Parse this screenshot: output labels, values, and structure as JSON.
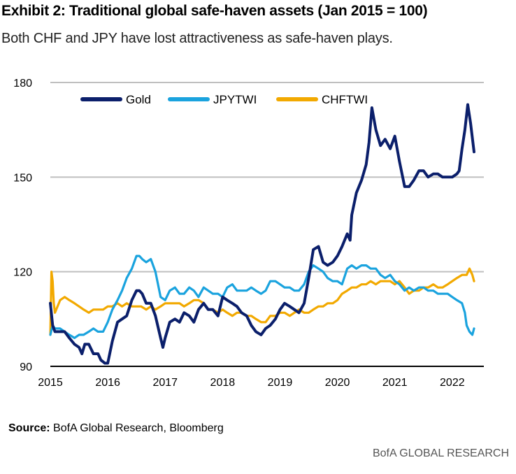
{
  "header": {
    "title": "Exhibit 2: Traditional global safe-haven assets (Jan 2015 = 100)",
    "subtitle": "Both CHF and JPY have lost attractiveness as safe-haven plays."
  },
  "footer": {
    "source_label": "Source:",
    "source_text": " BofA Global Research, Bloomberg",
    "brand": "BofA GLOBAL RESEARCH"
  },
  "colors": {
    "gold": "#0b1f6b",
    "jpy": "#1aa3de",
    "chf": "#f2a900",
    "grid": "#bfbfbf",
    "axis": "#000000"
  },
  "chart_data": {
    "type": "line",
    "title": "Traditional global safe-haven assets (Jan 2015 = 100)",
    "xlabel": "",
    "ylabel": "",
    "xlim": [
      2015.0,
      2022.55
    ],
    "ylim": [
      90,
      180
    ],
    "yticks": [
      90,
      120,
      150,
      180
    ],
    "xticks": [
      {
        "value": 2015,
        "label": "2015"
      },
      {
        "value": 2016,
        "label": "2016"
      },
      {
        "value": 2017,
        "label": "2017"
      },
      {
        "value": 2018,
        "label": "2018"
      },
      {
        "value": 2019,
        "label": "2019"
      },
      {
        "value": 2020,
        "label": "2020"
      },
      {
        "value": 2021,
        "label": "2021"
      },
      {
        "value": 2022,
        "label": "2022"
      }
    ],
    "legend": "top-left",
    "series": [
      {
        "name": "Gold",
        "x": [
          2015.0,
          2015.04,
          2015.08,
          2015.15,
          2015.25,
          2015.33,
          2015.42,
          2015.5,
          2015.55,
          2015.6,
          2015.67,
          2015.75,
          2015.83,
          2015.88,
          2015.95,
          2016.0,
          2016.08,
          2016.17,
          2016.25,
          2016.33,
          2016.42,
          2016.5,
          2016.55,
          2016.6,
          2016.67,
          2016.75,
          2016.83,
          2016.92,
          2016.96,
          2017.0,
          2017.08,
          2017.17,
          2017.25,
          2017.33,
          2017.42,
          2017.5,
          2017.58,
          2017.67,
          2017.75,
          2017.83,
          2017.92,
          2018.0,
          2018.08,
          2018.17,
          2018.25,
          2018.33,
          2018.42,
          2018.5,
          2018.58,
          2018.67,
          2018.75,
          2018.83,
          2018.92,
          2019.0,
          2019.08,
          2019.17,
          2019.25,
          2019.33,
          2019.42,
          2019.5,
          2019.58,
          2019.67,
          2019.75,
          2019.83,
          2019.92,
          2020.0,
          2020.08,
          2020.17,
          2020.22,
          2020.25,
          2020.33,
          2020.42,
          2020.5,
          2020.55,
          2020.6,
          2020.67,
          2020.75,
          2020.83,
          2020.92,
          2021.0,
          2021.08,
          2021.17,
          2021.25,
          2021.33,
          2021.42,
          2021.5,
          2021.58,
          2021.67,
          2021.75,
          2021.83,
          2021.92,
          2022.0,
          2022.08,
          2022.12,
          2022.17,
          2022.22,
          2022.27,
          2022.32,
          2022.38
        ],
        "values": [
          110,
          103,
          101,
          101,
          101,
          99,
          97,
          96,
          94,
          97,
          97,
          94,
          94,
          92,
          91,
          91,
          98,
          104,
          105,
          106,
          111,
          114,
          114,
          113,
          110,
          110,
          106,
          99,
          96,
          99,
          104,
          105,
          104,
          107,
          106,
          104,
          108,
          110,
          108,
          108,
          106,
          112,
          111,
          110,
          109,
          107,
          106,
          103,
          101,
          100,
          102,
          103,
          105,
          108,
          110,
          109,
          108,
          107,
          110,
          118,
          127,
          128,
          123,
          122,
          123,
          125,
          128,
          132,
          130,
          138,
          145,
          149,
          154,
          161,
          172,
          165,
          160,
          162,
          159,
          163,
          155,
          147,
          147,
          149,
          152,
          152,
          150,
          151,
          151,
          150,
          150,
          150,
          151,
          152,
          159,
          165,
          173,
          167,
          158
        ]
      },
      {
        "name": "JPYTWI",
        "x": [
          2015.0,
          2015.04,
          2015.08,
          2015.17,
          2015.25,
          2015.33,
          2015.42,
          2015.5,
          2015.58,
          2015.67,
          2015.75,
          2015.83,
          2015.92,
          2016.0,
          2016.08,
          2016.17,
          2016.25,
          2016.33,
          2016.42,
          2016.5,
          2016.55,
          2016.6,
          2016.67,
          2016.75,
          2016.83,
          2016.92,
          2017.0,
          2017.08,
          2017.17,
          2017.25,
          2017.33,
          2017.42,
          2017.5,
          2017.58,
          2017.67,
          2017.75,
          2017.83,
          2017.92,
          2018.0,
          2018.08,
          2018.17,
          2018.25,
          2018.33,
          2018.42,
          2018.5,
          2018.58,
          2018.67,
          2018.75,
          2018.83,
          2018.92,
          2019.0,
          2019.08,
          2019.17,
          2019.25,
          2019.33,
          2019.42,
          2019.5,
          2019.58,
          2019.67,
          2019.75,
          2019.83,
          2019.92,
          2020.0,
          2020.08,
          2020.17,
          2020.25,
          2020.33,
          2020.42,
          2020.5,
          2020.58,
          2020.67,
          2020.75,
          2020.83,
          2020.92,
          2021.0,
          2021.08,
          2021.17,
          2021.25,
          2021.33,
          2021.42,
          2021.5,
          2021.58,
          2021.67,
          2021.75,
          2021.83,
          2021.92,
          2022.0,
          2022.08,
          2022.17,
          2022.22,
          2022.25,
          2022.3,
          2022.35,
          2022.38
        ],
        "values": [
          100,
          103,
          102,
          102,
          101,
          100,
          99,
          100,
          100,
          101,
          102,
          101,
          101,
          104,
          108,
          111,
          114,
          118,
          121,
          125,
          125,
          124,
          123,
          124,
          120,
          112,
          111,
          114,
          115,
          113,
          113,
          115,
          114,
          112,
          115,
          114,
          113,
          113,
          112,
          115,
          116,
          114,
          114,
          114,
          115,
          114,
          113,
          114,
          117,
          117,
          116,
          115,
          115,
          114,
          114,
          116,
          120,
          122,
          121,
          120,
          118,
          117,
          117,
          116,
          121,
          122,
          121,
          122,
          122,
          121,
          121,
          119,
          118,
          119,
          117,
          116,
          114,
          115,
          114,
          115,
          115,
          114,
          114,
          113,
          113,
          113,
          112,
          111,
          110,
          107,
          103,
          101,
          100,
          102
        ]
      },
      {
        "name": "CHFTWI",
        "x": [
          2015.0,
          2015.02,
          2015.04,
          2015.06,
          2015.08,
          2015.17,
          2015.25,
          2015.33,
          2015.42,
          2015.5,
          2015.58,
          2015.67,
          2015.75,
          2015.83,
          2015.92,
          2016.0,
          2016.08,
          2016.17,
          2016.25,
          2016.33,
          2016.42,
          2016.5,
          2016.58,
          2016.67,
          2016.75,
          2016.83,
          2016.92,
          2017.0,
          2017.08,
          2017.17,
          2017.25,
          2017.33,
          2017.42,
          2017.5,
          2017.58,
          2017.67,
          2017.75,
          2017.83,
          2017.92,
          2018.0,
          2018.08,
          2018.17,
          2018.25,
          2018.33,
          2018.42,
          2018.5,
          2018.58,
          2018.67,
          2018.75,
          2018.83,
          2018.92,
          2019.0,
          2019.08,
          2019.17,
          2019.25,
          2019.33,
          2019.42,
          2019.5,
          2019.58,
          2019.67,
          2019.75,
          2019.83,
          2019.92,
          2020.0,
          2020.08,
          2020.17,
          2020.25,
          2020.33,
          2020.42,
          2020.5,
          2020.58,
          2020.67,
          2020.75,
          2020.83,
          2020.92,
          2021.0,
          2021.08,
          2021.17,
          2021.25,
          2021.33,
          2021.42,
          2021.5,
          2021.58,
          2021.67,
          2021.75,
          2021.83,
          2021.92,
          2022.0,
          2022.08,
          2022.17,
          2022.25,
          2022.3,
          2022.35,
          2022.38
        ],
        "values": [
          100,
          120,
          117,
          110,
          107,
          111,
          112,
          111,
          110,
          109,
          108,
          107,
          108,
          108,
          108,
          109,
          109,
          110,
          109,
          110,
          109,
          109,
          109,
          108,
          109,
          108,
          109,
          110,
          110,
          110,
          110,
          109,
          110,
          111,
          111,
          110,
          108,
          108,
          107,
          108,
          107,
          106,
          107,
          107,
          106,
          106,
          105,
          104,
          104,
          106,
          106,
          107,
          107,
          106,
          107,
          108,
          107,
          107,
          108,
          109,
          109,
          110,
          110,
          111,
          113,
          114,
          115,
          115,
          116,
          116,
          117,
          116,
          117,
          117,
          117,
          116,
          117,
          115,
          113,
          114,
          114,
          115,
          115,
          116,
          115,
          115,
          116,
          117,
          118,
          119,
          119,
          121,
          119,
          117
        ]
      }
    ]
  }
}
